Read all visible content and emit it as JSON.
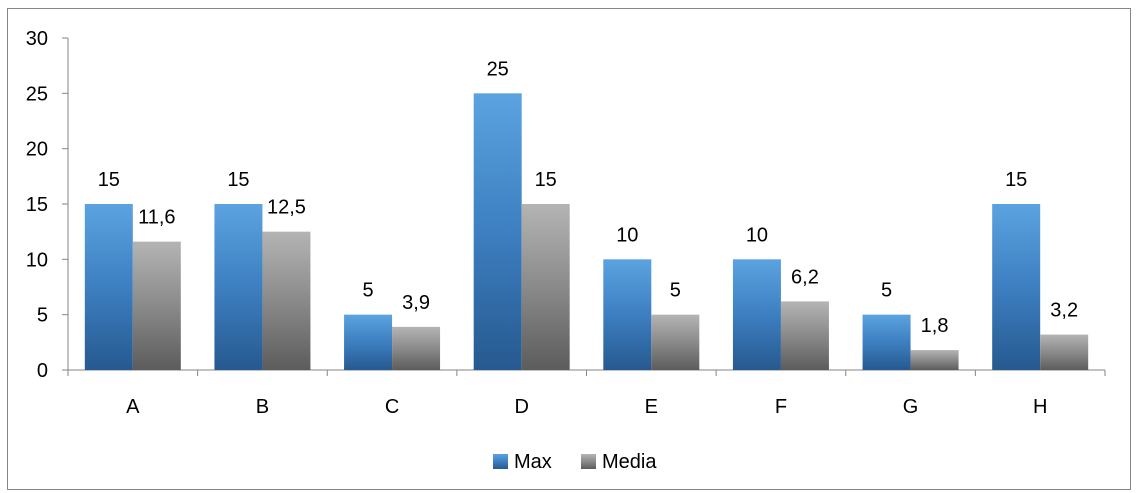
{
  "chart_data": {
    "type": "bar",
    "categories": [
      "A",
      "B",
      "C",
      "D",
      "E",
      "F",
      "G",
      "H"
    ],
    "series": [
      {
        "name": "Max",
        "values": [
          15,
          15,
          5,
          25,
          10,
          10,
          5,
          15
        ]
      },
      {
        "name": "Media",
        "values": [
          11.6,
          12.5,
          3.9,
          15,
          5,
          6.2,
          1.8,
          3.2
        ]
      }
    ],
    "data_labels": [
      [
        "15",
        "15",
        "5",
        "25",
        "10",
        "10",
        "5",
        "15"
      ],
      [
        "11,6",
        "12,5",
        "3,9",
        "15",
        "5",
        "6,2",
        "1,8",
        "3,2"
      ]
    ],
    "y_ticks": [
      "0",
      "5",
      "10",
      "15",
      "20",
      "25",
      "30"
    ],
    "ylim": [
      0,
      30
    ],
    "title": "",
    "xlabel": "",
    "ylabel": "",
    "grid": false,
    "legend_position": "bottom",
    "colors": {
      "Max": [
        "#5ba3e0",
        "#3d7fc1",
        "#26598f"
      ],
      "Media": [
        "#b4b4b4",
        "#8a8a8a",
        "#5c5c5c"
      ]
    }
  }
}
